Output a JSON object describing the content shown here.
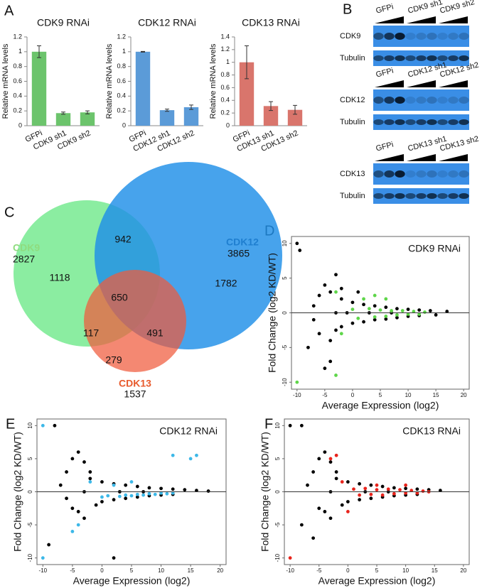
{
  "panels": [
    "A",
    "B",
    "C",
    "D",
    "E",
    "F"
  ],
  "chart_data": [
    {
      "type": "bar",
      "title": "CDK9 RNAi",
      "ylabel": "Relative mRNA levels",
      "categories": [
        "GFPi",
        "CDK9 sh1",
        "CDK9 sh2"
      ],
      "values": [
        1,
        0.17,
        0.18
      ],
      "errors": [
        0.08,
        0.015,
        0.02
      ],
      "color": "#6cc46c",
      "ylim": [
        0,
        1.2
      ],
      "yticks": [
        0,
        0.2,
        0.4,
        0.6,
        0.8,
        1,
        1.2
      ]
    },
    {
      "type": "bar",
      "title": "CDK12 RNAi",
      "ylabel": "Relative mRNA levels",
      "categories": [
        "GFPi",
        "CDK12 sh1",
        "CDK12 sh2"
      ],
      "values": [
        1,
        0.21,
        0.25
      ],
      "errors": [
        0.005,
        0.015,
        0.03
      ],
      "color": "#5b9bd8",
      "ylim": [
        0,
        1.2
      ],
      "yticks": [
        0,
        0.2,
        0.4,
        0.6,
        0.8,
        1,
        1.2
      ]
    },
    {
      "type": "bar",
      "title": "CDK13 RNAi",
      "ylabel": "Relative mRNA levels",
      "categories": [
        "GFPi",
        "CDK13 sh1",
        "CDK13 sh2"
      ],
      "values": [
        1,
        0.31,
        0.25
      ],
      "errors": [
        0.26,
        0.07,
        0.07
      ],
      "color": "#d9756c",
      "ylim": [
        0,
        1.4
      ],
      "yticks": [
        0,
        0.2,
        0.4,
        0.6,
        0.8,
        1,
        1.2,
        1.4
      ]
    },
    {
      "type": "scatter",
      "title": "CDK9 RNAi",
      "xlabel": "Average Expression (log2)",
      "ylabel": "Fold Change (log2 KD/WT)",
      "xlim": [
        -11,
        21
      ],
      "xticks": [
        -10,
        -5,
        0,
        5,
        10,
        15,
        20
      ],
      "ylim": [
        -11,
        11
      ],
      "yticks": [
        -10,
        -5,
        0,
        5,
        10
      ],
      "series": [
        {
          "color": "#000000",
          "x": [
            -10,
            -9.5,
            -3,
            -5,
            -4,
            -2,
            -6,
            -3,
            -4,
            -6,
            -5,
            -4,
            -2,
            -2,
            0,
            0,
            2,
            2,
            4,
            4,
            6,
            6,
            8,
            8,
            10,
            10,
            12,
            12,
            14,
            15,
            17,
            -1,
            3,
            7,
            1,
            -3,
            -7,
            -7,
            -8
          ],
          "values": [
            10,
            9,
            5.5,
            4,
            3,
            3.5,
            2.5,
            -2.5,
            -4,
            -3,
            -8,
            -7,
            2,
            -2,
            1.5,
            -1.5,
            1.2,
            -1.3,
            1,
            -1,
            0.8,
            -0.9,
            0.6,
            -0.7,
            0.5,
            -0.5,
            0.4,
            -0.4,
            0.3,
            -0.3,
            0.2,
            0,
            0,
            0,
            3,
            0,
            1,
            -1,
            -5
          ]
        },
        {
          "color": "#5fd64a",
          "x": [
            -10,
            -3,
            -3,
            -2,
            0,
            1,
            3,
            4,
            5,
            6,
            7,
            8,
            9,
            10,
            11,
            12,
            13,
            2,
            4,
            6
          ],
          "values": [
            -10,
            -9,
            3,
            -3,
            0.5,
            -0.8,
            0.6,
            -0.6,
            0.4,
            -0.5,
            0.3,
            -0.3,
            0.3,
            -0.2,
            0.2,
            -0.2,
            0.1,
            2,
            2.5,
            2
          ]
        }
      ]
    },
    {
      "type": "scatter",
      "title": "CDK12 RNAi",
      "xlabel": "Average Expression (log2)",
      "ylabel": "Fold Change (log2 KD/WT)",
      "xlim": [
        -11,
        21
      ],
      "xticks": [
        -10,
        -5,
        0,
        5,
        10,
        15,
        20
      ],
      "ylim": [
        -11,
        11
      ],
      "yticks": [
        -10,
        -5,
        0,
        5,
        10
      ],
      "series": [
        {
          "color": "#000000",
          "x": [
            -8,
            -4,
            -5,
            -3,
            -6,
            -2,
            -4,
            -3,
            -5,
            -7,
            -2,
            -1,
            0,
            0,
            2,
            2,
            4,
            4,
            6,
            6,
            8,
            8,
            10,
            10,
            12,
            12,
            14,
            16,
            18,
            -3,
            3,
            7,
            -6,
            -9,
            2
          ],
          "values": [
            10,
            6,
            5,
            4.5,
            3,
            3,
            -3,
            -4,
            -2.5,
            1,
            2,
            -2,
            1.5,
            -1.5,
            1.2,
            -1.2,
            1,
            -1,
            0.8,
            -0.8,
            0.6,
            -0.6,
            0.5,
            -0.5,
            0.4,
            -0.4,
            0.3,
            0.2,
            0.1,
            0,
            0,
            0,
            -1,
            -8,
            -10
          ]
        },
        {
          "color": "#3db8e8",
          "x": [
            -10,
            -10,
            12,
            15,
            16,
            -5,
            -4,
            -2,
            0,
            1,
            3,
            4,
            5,
            6,
            7,
            8,
            9,
            10,
            11,
            12,
            2,
            5
          ],
          "values": [
            10,
            -10,
            5.5,
            5,
            5.5,
            -6,
            -5,
            1.5,
            -0.8,
            -0.6,
            -0.7,
            -0.5,
            -0.6,
            -0.4,
            -0.5,
            -0.3,
            -0.4,
            -0.2,
            -0.3,
            -0.2,
            1,
            1.5
          ]
        }
      ]
    },
    {
      "type": "scatter",
      "title": "CDK13 RNAi",
      "xlabel": "Average Expression (log2)",
      "ylabel": "Fold Change (log2 KD/WT)",
      "xlim": [
        -11,
        21
      ],
      "xticks": [
        -10,
        -5,
        0,
        5,
        10,
        15,
        20
      ],
      "ylim": [
        -11,
        11
      ],
      "yticks": [
        -10,
        -5,
        0,
        5,
        10
      ],
      "series": [
        {
          "color": "#000000",
          "x": [
            -10,
            -8,
            -4,
            -5,
            -3,
            -6,
            -2,
            -4,
            -3,
            -5,
            -7,
            -2,
            -1,
            0,
            0,
            2,
            2,
            4,
            4,
            6,
            6,
            8,
            8,
            10,
            10,
            12,
            12,
            14,
            16,
            -3,
            3,
            7,
            -6,
            -8
          ],
          "values": [
            10,
            10,
            6,
            5,
            4.5,
            3,
            3,
            -3,
            -4,
            -2.5,
            1,
            2,
            -2,
            1.5,
            -1.5,
            1.2,
            -1.2,
            1,
            -1,
            0.8,
            -0.8,
            0.6,
            -0.6,
            0.5,
            -0.5,
            0.4,
            -0.4,
            0.3,
            0.2,
            0,
            0,
            0,
            -7,
            -5
          ]
        },
        {
          "color": "#e8241c",
          "x": [
            -10,
            -2,
            -3,
            0,
            1,
            2,
            3,
            4,
            5,
            6,
            7,
            8,
            9,
            10,
            11,
            12,
            13,
            14,
            -1,
            5,
            10
          ],
          "values": [
            -10,
            5.5,
            5,
            -3,
            0.4,
            -0.5,
            0.5,
            -0.4,
            0.3,
            -0.5,
            0.4,
            -0.3,
            0.3,
            -0.2,
            0.2,
            -0.2,
            0.1,
            0,
            1.5,
            1,
            1
          ]
        }
      ]
    }
  ],
  "blots": [
    {
      "lanes": [
        "GFPi",
        "CDK9 sh1",
        "CDK9 sh2"
      ],
      "target": "CDK9",
      "control": "Tubulin"
    },
    {
      "lanes": [
        "GFPi",
        "CDK12 sh1",
        "CDK12 sh2"
      ],
      "target": "CDK12",
      "control": "Tubulin"
    },
    {
      "lanes": [
        "GFPi",
        "CDK13 sh1",
        "CDK13 sh2"
      ],
      "target": "CDK13",
      "control": "Tubulin"
    }
  ],
  "venn": {
    "sets": [
      {
        "name": "CDK9",
        "total": "2827"
      },
      {
        "name": "CDK12",
        "total": "3865"
      },
      {
        "name": "CDK13",
        "total": "1537"
      }
    ],
    "regions": [
      "1118",
      "942",
      "1782",
      "650",
      "117",
      "491",
      "279"
    ]
  }
}
